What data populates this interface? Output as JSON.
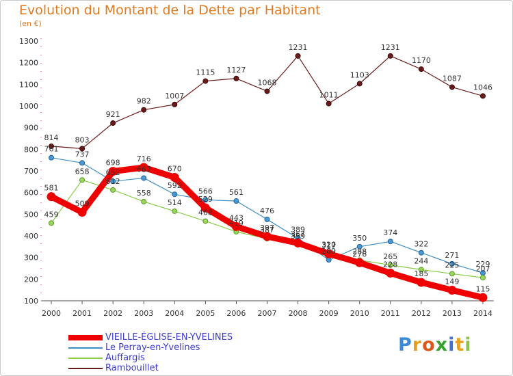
{
  "title": "Evolution du Montant de la Dette par Habitant",
  "unit": "(en €)",
  "logo": {
    "letters": [
      "P",
      "r",
      "o",
      "x",
      "i",
      "t",
      "i"
    ],
    "colors": [
      "#3b8ad8",
      "#e8a020",
      "#e0561a",
      "#3aa030",
      "#4070d0",
      "#e8a020",
      "#8bc34a"
    ]
  },
  "chart_data": {
    "type": "line",
    "title": "Evolution du Montant de la Dette par Habitant",
    "ylabel": "(en €)",
    "xlabel": "",
    "x": [
      "2000",
      "2001",
      "2002",
      "2003",
      "2004",
      "2005",
      "2006",
      "2007",
      "2008",
      "2009",
      "2010",
      "2011",
      "2012",
      "2013",
      "2014"
    ],
    "ylim": [
      100,
      1300
    ],
    "yticks": [
      100,
      200,
      300,
      400,
      500,
      600,
      700,
      800,
      900,
      1000,
      1100,
      1200,
      1300
    ],
    "grid": false,
    "legend": "bottom-left",
    "series": [
      {
        "name": "VIEILLE-ÉGLISE-EN-YVELINES",
        "color": "#ee0000",
        "values": [
          581,
          509,
          698,
          716,
          670,
          529,
          443,
          397,
          367,
          317,
          276,
          228,
          185,
          149,
          115
        ],
        "labels": [
          "581",
          "509",
          "698",
          "716",
          "670",
          "529",
          "443",
          "397",
          "367",
          "317",
          "276",
          "228",
          "185",
          "149",
          "115"
        ]
      },
      {
        "name": "Le Perray-en-Yvelines",
        "color": "#3e8ec4",
        "values": [
          761,
          737,
          652,
          667,
          592,
          566,
          561,
          476,
          389,
          289,
          350,
          374,
          322,
          271,
          229
        ],
        "labels": [
          "761",
          "737",
          "652",
          "667",
          "592",
          "566",
          "561",
          "476",
          "389",
          "289",
          "350",
          "374",
          "322",
          "271",
          "229"
        ]
      },
      {
        "name": "Auffargis",
        "color": "#88cc44",
        "values": [
          459,
          658,
          612,
          558,
          514,
          468,
          419,
          387,
          359,
          320,
          288,
          265,
          244,
          225,
          207
        ],
        "labels": [
          "459",
          "658",
          "612",
          "558",
          "514",
          "468",
          "419",
          "387",
          "359",
          "320",
          "288",
          "265",
          "244",
          "225",
          "207"
        ]
      },
      {
        "name": "Rambouillet",
        "color": "#6b1a1a",
        "values": [
          814,
          803,
          921,
          982,
          1007,
          1115,
          1127,
          1068,
          1231,
          1011,
          1103,
          1231,
          1170,
          1087,
          1046
        ],
        "labels": [
          "814",
          "803",
          "921",
          "982",
          "1007",
          "1115",
          "1127",
          "1068",
          "1231",
          "1011",
          "1103",
          "1231",
          "1170",
          "1087",
          "1046"
        ]
      }
    ]
  }
}
